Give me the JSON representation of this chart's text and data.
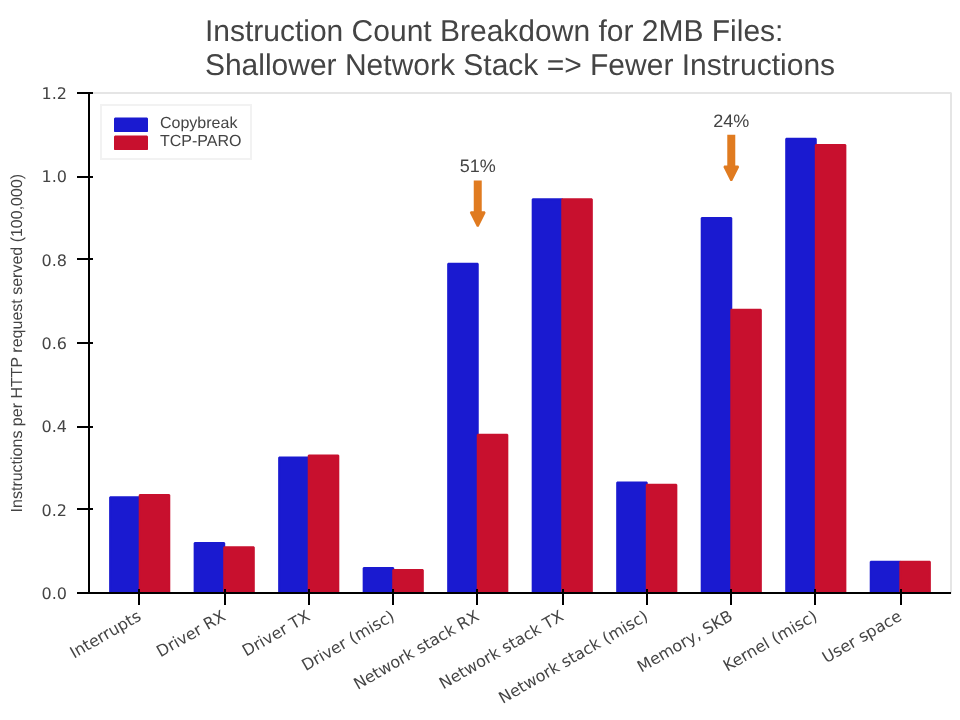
{
  "chart_data": {
    "type": "bar",
    "title": "Instruction Count Breakdown for 2MB Files:\nShallower Network Stack => Fewer Instructions",
    "ylabel": "Instructions per HTTP request served (100,000)",
    "categories": [
      "Interrupts",
      "Driver RX",
      "Driver TX",
      "Driver (misc)",
      "Network stack RX",
      "Network stack TX",
      "Network stack (misc)",
      "Memory, SKB",
      "Kernel (misc)",
      "User space"
    ],
    "series": [
      {
        "name": "Copybreak",
        "color": "#1a1ad0",
        "values": [
          0.23,
          0.12,
          0.325,
          0.06,
          0.79,
          0.945,
          0.265,
          0.9,
          1.09,
          0.075
        ]
      },
      {
        "name": "TCP-PARO",
        "color": "#c8102e",
        "values": [
          0.235,
          0.11,
          0.33,
          0.055,
          0.38,
          0.945,
          0.26,
          0.68,
          1.075,
          0.075
        ]
      }
    ],
    "ylim": [
      0,
      1.2
    ],
    "yticks": [
      {
        "value": 0,
        "label": "0.0"
      },
      0.2,
      0.4,
      0.6,
      0.8,
      {
        "value": 1,
        "label": "1.0"
      },
      1.2
    ],
    "annotations": [
      "51%",
      "24%"
    ],
    "legend": "top left",
    "grid": false
  }
}
